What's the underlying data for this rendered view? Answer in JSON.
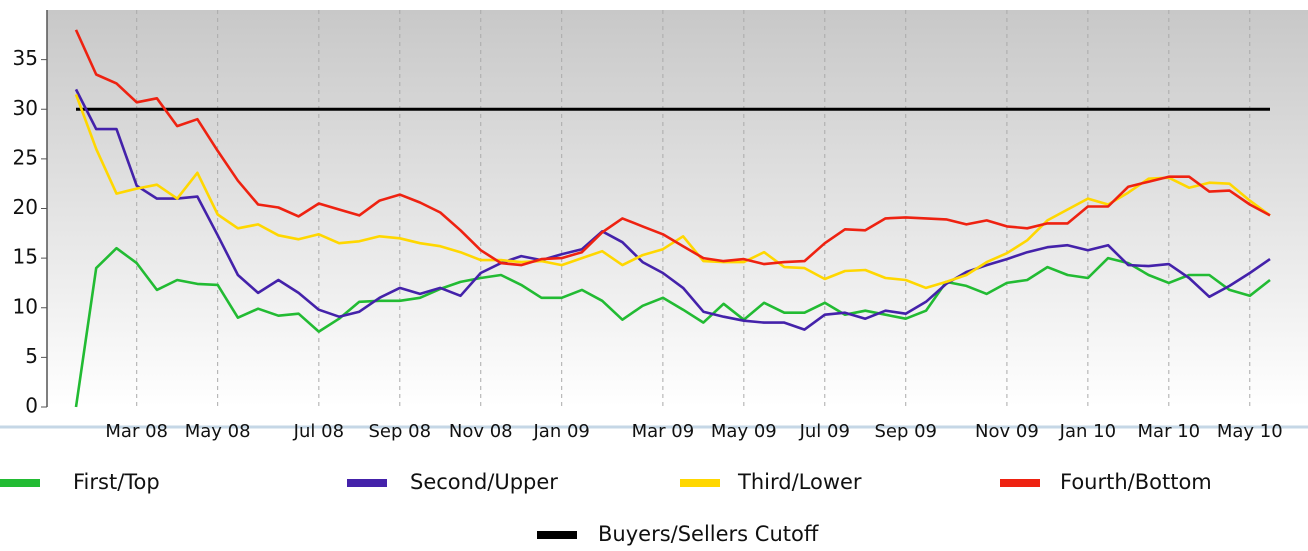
{
  "chart_data": {
    "type": "line",
    "categories": [
      null,
      null,
      null,
      "Mar 08",
      null,
      null,
      null,
      "May 08",
      null,
      null,
      null,
      null,
      "Jul 08",
      null,
      null,
      null,
      "Sep 08",
      null,
      null,
      null,
      "Nov 08",
      null,
      null,
      null,
      "Jan 09",
      null,
      null,
      null,
      null,
      "Mar 09",
      null,
      null,
      null,
      "May 09",
      null,
      null,
      null,
      "Jul 09",
      null,
      null,
      null,
      "Sep 09",
      null,
      null,
      null,
      null,
      "Nov 09",
      null,
      null,
      null,
      "Jan 10",
      null,
      null,
      null,
      "Mar 10",
      null,
      null,
      null,
      "May 10",
      null
    ],
    "series": [
      {
        "name": "First/Top",
        "color": "#22bb33",
        "values": [
          0,
          14,
          16,
          14.5,
          11.8,
          12.8,
          12.4,
          12.3,
          9,
          9.9,
          9.2,
          9.4,
          7.6,
          8.9,
          10.6,
          10.7,
          10.7,
          11,
          11.9,
          12.6,
          13,
          13.3,
          12.3,
          11,
          11,
          11.8,
          10.7,
          8.8,
          10.2,
          11,
          9.8,
          8.5,
          10.4,
          8.8,
          10.5,
          9.5,
          9.5,
          10.5,
          9.3,
          9.7,
          9.3,
          8.9,
          9.7,
          12.6,
          12.2,
          11.4,
          12.5,
          12.8,
          14.1,
          13.3,
          13,
          15,
          14.5,
          13.3,
          12.5,
          13.3,
          13.3,
          11.8,
          11.2,
          12.8
        ]
      },
      {
        "name": "Second/Upper",
        "color": "#4422aa",
        "values": [
          32,
          28,
          28,
          22.3,
          21,
          21,
          21.2,
          17.3,
          13.3,
          11.5,
          12.8,
          11.5,
          9.8,
          9.1,
          9.6,
          11,
          12,
          11.4,
          12,
          11.2,
          13.5,
          14.5,
          15.2,
          14.8,
          15.4,
          15.9,
          17.7,
          16.6,
          14.6,
          13.5,
          12,
          9.6,
          9.1,
          8.7,
          8.5,
          8.5,
          7.8,
          9.3,
          9.5,
          8.9,
          9.7,
          9.4,
          10.6,
          12.4,
          13.6,
          14.3,
          14.9,
          15.6,
          16.1,
          16.3,
          15.8,
          16.3,
          14.3,
          14.2,
          14.4,
          13,
          11.1,
          12.2,
          13.5,
          14.9
        ]
      },
      {
        "name": "Third/Lower",
        "color": "#ffd700",
        "values": [
          31.5,
          26,
          21.5,
          22,
          22.4,
          21,
          23.6,
          19.4,
          18,
          18.4,
          17.3,
          16.9,
          17.4,
          16.5,
          16.7,
          17.2,
          17,
          16.5,
          16.2,
          15.6,
          14.8,
          14.8,
          14.6,
          14.7,
          14.3,
          15,
          15.7,
          14.3,
          15.3,
          15.9,
          17.2,
          14.7,
          14.6,
          14.6,
          15.6,
          14.1,
          14,
          12.9,
          13.7,
          13.8,
          13,
          12.8,
          12,
          12.6,
          13.3,
          14.6,
          15.5,
          16.8,
          18.8,
          19.9,
          21,
          20.4,
          21.6,
          23,
          23.1,
          22.1,
          22.6,
          22.5,
          20.8,
          19.3
        ]
      },
      {
        "name": "Fourth/Bottom",
        "color": "#ee2211",
        "values": [
          38,
          33.5,
          32.6,
          30.7,
          31.1,
          28.3,
          29,
          25.8,
          22.8,
          20.4,
          20.1,
          19.2,
          20.5,
          19.9,
          19.3,
          20.8,
          21.4,
          20.6,
          19.6,
          17.8,
          15.8,
          14.5,
          14.3,
          14.9,
          15,
          15.6,
          17.6,
          19,
          18.2,
          17.4,
          16.2,
          15,
          14.7,
          14.9,
          14.4,
          14.6,
          14.7,
          16.5,
          17.9,
          17.8,
          19,
          19.1,
          19,
          18.9,
          18.4,
          18.8,
          18.2,
          18,
          18.5,
          18.5,
          20.2,
          20.2,
          22.2,
          22.7,
          23.2,
          23.2,
          21.7,
          21.8,
          20.4,
          19.3
        ]
      }
    ],
    "cutoff": {
      "name": "Buyers/Sellers Cutoff",
      "color": "#000000",
      "value": 30
    },
    "ylim": [
      0,
      40
    ],
    "yticks": [
      0,
      5,
      10,
      15,
      20,
      25,
      30,
      35
    ],
    "grid": true
  }
}
